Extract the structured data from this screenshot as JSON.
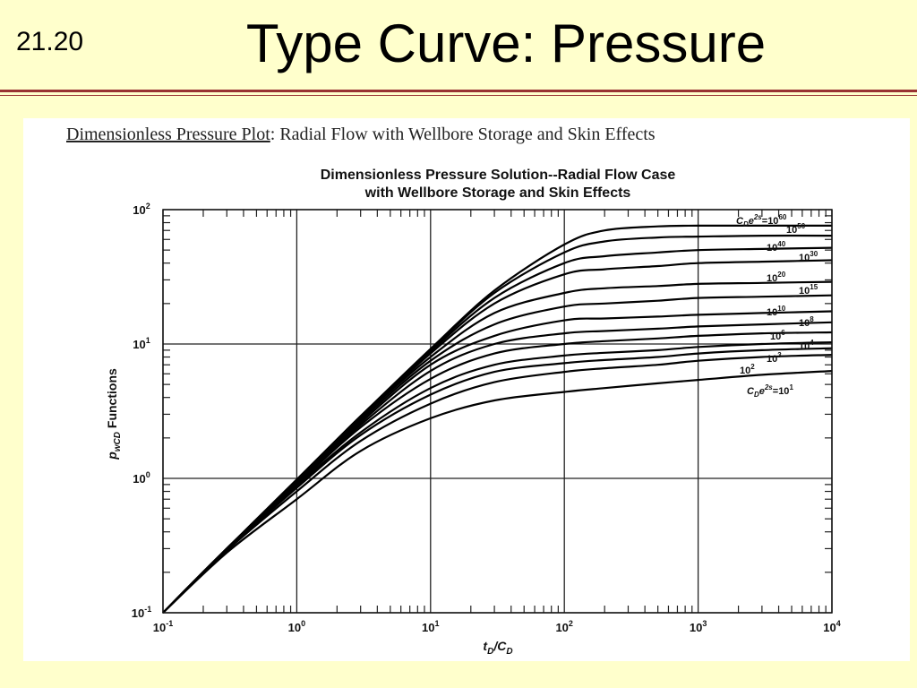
{
  "slide": {
    "number": "21.20",
    "title": "Type Curve: Pressure"
  },
  "panel": {
    "heading_underlined": "Dimensionless Pressure Plot",
    "heading_rest": ": Radial Flow with Wellbore Storage and Skin Effects"
  },
  "colors": {
    "background": "#ffffcc",
    "rule": "#993333",
    "curve": "#000000"
  },
  "chart_data": {
    "type": "line",
    "title": "Dimensionless Pressure Solution--Radial Flow Case",
    "subtitle": "with Wellbore Storage and Skin Effects",
    "xlabel": {
      "base": "t",
      "sub1": "D",
      "mid": "/C",
      "sub2": "D"
    },
    "ylabel": {
      "base": "p",
      "sub": "wCD",
      "rest": " Functions"
    },
    "x_scale": "log",
    "y_scale": "log",
    "xlim": [
      0.1,
      10000
    ],
    "ylim": [
      0.1,
      100
    ],
    "grid": "major decades",
    "x_ticks": [
      {
        "base": "10",
        "exp": "-1",
        "value": 0.1
      },
      {
        "base": "10",
        "exp": "0",
        "value": 1
      },
      {
        "base": "10",
        "exp": "1",
        "value": 10
      },
      {
        "base": "10",
        "exp": "2",
        "value": 100
      },
      {
        "base": "10",
        "exp": "3",
        "value": 1000
      },
      {
        "base": "10",
        "exp": "4",
        "value": 10000
      }
    ],
    "y_ticks": [
      {
        "base": "10",
        "exp": "-1",
        "value": 0.1
      },
      {
        "base": "10",
        "exp": "0",
        "value": 1
      },
      {
        "base": "10",
        "exp": "1",
        "value": 10
      },
      {
        "base": "10",
        "exp": "2",
        "value": 100
      }
    ],
    "curve_labels": [
      {
        "text": "C",
        "sub": "D",
        "mid": "e",
        "sup": "2s",
        "eq": "=10",
        "exp": "60"
      },
      {
        "text": "10",
        "exp": "50"
      },
      {
        "text": "10",
        "exp": "40"
      },
      {
        "text": "10",
        "exp": "30"
      },
      {
        "text": "10",
        "exp": "20"
      },
      {
        "text": "10",
        "exp": "15"
      },
      {
        "text": "10",
        "exp": "10"
      },
      {
        "text": "10",
        "exp": "8"
      },
      {
        "text": "10",
        "exp": "6"
      },
      {
        "text": "10",
        "exp": "4"
      },
      {
        "text": "10",
        "exp": "3"
      },
      {
        "text": "10",
        "exp": "2"
      },
      {
        "text": "C",
        "sub": "D",
        "mid": "e",
        "sup": "2s",
        "eq": "=10",
        "exp": "1"
      }
    ],
    "series": [
      {
        "x": [
          0.1,
          0.3,
          1,
          3,
          10,
          30,
          100,
          200,
          500,
          1000,
          3000,
          10000
        ],
        "y": [
          0.1,
          0.3,
          0.98,
          2.9,
          9.2,
          25,
          55,
          70,
          75,
          76,
          76,
          76
        ]
      },
      {
        "x": [
          0.1,
          0.3,
          1,
          3,
          10,
          30,
          100,
          200,
          500,
          1000,
          3000,
          10000
        ],
        "y": [
          0.1,
          0.3,
          0.98,
          2.9,
          9,
          24,
          48,
          58,
          62,
          63,
          64,
          64
        ]
      },
      {
        "x": [
          0.1,
          0.3,
          1,
          3,
          10,
          30,
          100,
          200,
          500,
          1000,
          3000,
          10000
        ],
        "y": [
          0.1,
          0.3,
          0.97,
          2.9,
          8.8,
          22,
          40,
          45,
          48,
          50,
          51,
          52
        ]
      },
      {
        "x": [
          0.1,
          0.3,
          1,
          3,
          10,
          30,
          100,
          200,
          500,
          1000,
          3000,
          10000
        ],
        "y": [
          0.1,
          0.3,
          0.97,
          2.8,
          8.5,
          20,
          33,
          36,
          38,
          40,
          41,
          42
        ]
      },
      {
        "x": [
          0.1,
          0.3,
          1,
          3,
          10,
          30,
          100,
          200,
          500,
          1000,
          3000,
          10000
        ],
        "y": [
          0.1,
          0.3,
          0.96,
          2.8,
          8,
          17,
          24,
          26,
          27,
          28,
          28.5,
          29
        ]
      },
      {
        "x": [
          0.1,
          0.3,
          1,
          3,
          10,
          30,
          100,
          200,
          500,
          1000,
          3000,
          10000
        ],
        "y": [
          0.1,
          0.3,
          0.95,
          2.7,
          7.5,
          14,
          19,
          20,
          21,
          22,
          22.5,
          23
        ]
      },
      {
        "x": [
          0.1,
          0.3,
          1,
          3,
          10,
          30,
          100,
          200,
          500,
          1000,
          3000,
          10000
        ],
        "y": [
          0.1,
          0.3,
          0.93,
          2.6,
          7,
          11.5,
          15,
          15.5,
          16,
          16.5,
          17,
          17.5
        ]
      },
      {
        "x": [
          0.1,
          0.3,
          1,
          3,
          10,
          30,
          100,
          200,
          500,
          1000,
          3000,
          10000
        ],
        "y": [
          0.1,
          0.3,
          0.92,
          2.5,
          6.3,
          10,
          12,
          12.5,
          13,
          13.5,
          14,
          14.5
        ]
      },
      {
        "x": [
          0.1,
          0.3,
          1,
          3,
          10,
          30,
          100,
          200,
          500,
          1000,
          3000,
          10000
        ],
        "y": [
          0.1,
          0.3,
          0.9,
          2.4,
          5.5,
          8.5,
          10,
          10.5,
          11,
          11.5,
          12,
          12.2
        ]
      },
      {
        "x": [
          0.1,
          0.3,
          1,
          3,
          10,
          30,
          100,
          200,
          500,
          1000,
          3000,
          10000
        ],
        "y": [
          0.1,
          0.3,
          0.88,
          2.2,
          4.7,
          7,
          8.2,
          8.6,
          9,
          9.5,
          10,
          10.3
        ]
      },
      {
        "x": [
          0.1,
          0.3,
          1,
          3,
          10,
          30,
          100,
          200,
          500,
          1000,
          3000,
          10000
        ],
        "y": [
          0.1,
          0.29,
          0.85,
          2.1,
          4.2,
          6.2,
          7.2,
          7.6,
          8,
          8.5,
          9,
          9.3
        ]
      },
      {
        "x": [
          0.1,
          0.3,
          1,
          3,
          10,
          30,
          100,
          200,
          500,
          1000,
          3000,
          10000
        ],
        "y": [
          0.1,
          0.29,
          0.8,
          1.9,
          3.6,
          5.2,
          6.2,
          6.6,
          7,
          7.5,
          8,
          8.3
        ]
      },
      {
        "x": [
          0.1,
          0.3,
          1,
          3,
          10,
          30,
          100,
          200,
          500,
          1000,
          3000,
          10000
        ],
        "y": [
          0.1,
          0.28,
          0.7,
          1.6,
          2.8,
          3.8,
          4.4,
          4.7,
          5.1,
          5.4,
          5.9,
          6.3
        ]
      }
    ]
  }
}
